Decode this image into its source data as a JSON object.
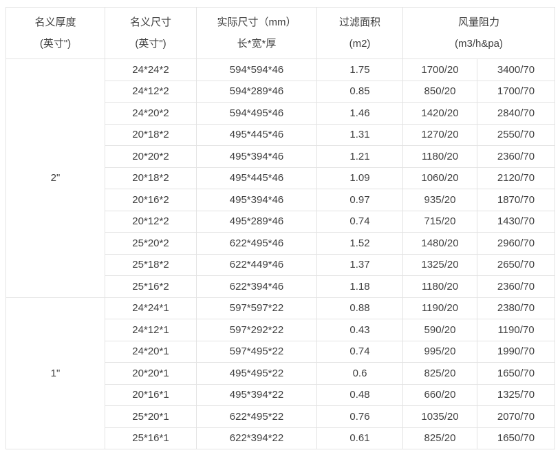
{
  "table": {
    "headers": {
      "thickness_line1": "名义厚度",
      "thickness_line2": "(英寸\")",
      "nominal_size_line1": "名义尺寸",
      "nominal_size_line2": "(英寸\")",
      "actual_size_line1": "实际尺寸（mm）",
      "actual_size_line2": "长*宽*厚",
      "filter_area_line1": "过滤面积",
      "filter_area_line2": "(m2)",
      "airflow_resistance_line1": "风量阻力",
      "airflow_resistance_line2": "(m3/h&pa)"
    },
    "groups": [
      {
        "thickness": "2\"",
        "rows": [
          [
            "24*24*2",
            "594*594*46",
            "1.75",
            "1700/20",
            "3400/70"
          ],
          [
            "24*12*2",
            "594*289*46",
            "0.85",
            "850/20",
            "1700/70"
          ],
          [
            "24*20*2",
            "594*495*46",
            "1.46",
            "1420/20",
            "2840/70"
          ],
          [
            "20*18*2",
            "495*445*46",
            "1.31",
            "1270/20",
            "2550/70"
          ],
          [
            "20*20*2",
            "495*394*46",
            "1.21",
            "1180/20",
            "2360/70"
          ],
          [
            "20*18*2",
            "495*445*46",
            "1.09",
            "1060/20",
            "2120/70"
          ],
          [
            "20*16*2",
            "495*394*46",
            "0.97",
            "935/20",
            "1870/70"
          ],
          [
            "20*12*2",
            "495*289*46",
            "0.74",
            "715/20",
            "1430/70"
          ],
          [
            "25*20*2",
            "622*495*46",
            "1.52",
            "1480/20",
            "2960/70"
          ],
          [
            "25*18*2",
            "622*449*46",
            "1.37",
            "1325/20",
            "2650/70"
          ],
          [
            "25*16*2",
            "622*394*46",
            "1.18",
            "1180/20",
            "2360/70"
          ]
        ]
      },
      {
        "thickness": "1\"",
        "rows": [
          [
            "24*24*1",
            "597*597*22",
            "0.88",
            "1190/20",
            "2380/70"
          ],
          [
            "24*12*1",
            "597*292*22",
            "0.43",
            "590/20",
            "1190/70"
          ],
          [
            "24*20*1",
            "597*495*22",
            "0.74",
            "995/20",
            "1990/70"
          ],
          [
            "20*20*1",
            "495*495*22",
            "0.6",
            "825/20",
            "1650/70"
          ],
          [
            "20*16*1",
            "495*394*22",
            "0.48",
            "660/20",
            "1325/70"
          ],
          [
            "25*20*1",
            "622*495*22",
            "0.76",
            "1035/20",
            "2070/70"
          ],
          [
            "25*16*1",
            "622*394*22",
            "0.61",
            "825/20",
            "1650/70"
          ]
        ]
      }
    ]
  }
}
